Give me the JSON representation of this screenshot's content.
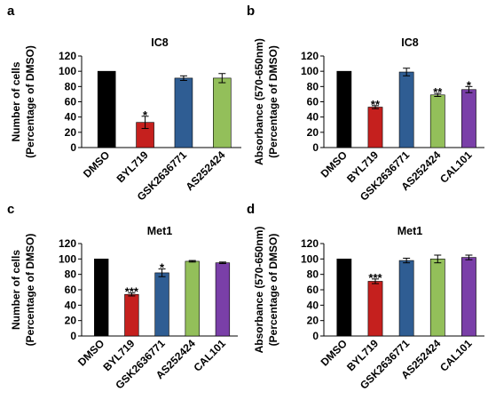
{
  "chart_data": [
    {
      "panel": "a",
      "type": "bar",
      "title": "IC8",
      "ylabel_lines": [
        "Number of cells",
        "(Percentage of DMSO)"
      ],
      "ylim": [
        0,
        120
      ],
      "yticks": [
        "0",
        "20",
        "40",
        "60",
        "80",
        "100",
        "120"
      ],
      "categories": [
        "DMSO",
        "BYL719",
        "GSK2636771",
        "AS252424"
      ],
      "values": [
        100,
        33,
        91,
        91
      ],
      "errors": [
        0,
        8,
        3,
        6
      ],
      "significance": [
        "",
        "*",
        "",
        ""
      ],
      "colors": [
        "#000000",
        "#c5201e",
        "#2f5d93",
        "#93bf5a"
      ],
      "grid": false,
      "legend": "none"
    },
    {
      "panel": "b",
      "type": "bar",
      "title": "IC8",
      "ylabel_lines": [
        "Absorbance (570-650nm)",
        "(Percentage of DMSO)"
      ],
      "ylim": [
        0,
        120
      ],
      "yticks": [
        "0",
        "20",
        "40",
        "60",
        "80",
        "100",
        "120"
      ],
      "categories": [
        "DMSO",
        "BYL719",
        "GSK2636771",
        "AS252424",
        "CAL101"
      ],
      "values": [
        100,
        53,
        99,
        69,
        76
      ],
      "errors": [
        0,
        2,
        5,
        2,
        4
      ],
      "significance": [
        "",
        "**",
        "",
        "**",
        "*"
      ],
      "colors": [
        "#000000",
        "#c5201e",
        "#2f5d93",
        "#93bf5a",
        "#7a3fa8"
      ],
      "grid": false,
      "legend": "none"
    },
    {
      "panel": "c",
      "type": "bar",
      "title": "Met1",
      "ylabel_lines": [
        "Number of cells",
        "(Percentage of DMSO)"
      ],
      "ylim": [
        0,
        120
      ],
      "yticks": [
        "0",
        "20",
        "40",
        "60",
        "80",
        "100",
        "120"
      ],
      "categories": [
        "DMSO",
        "BYL719",
        "GSK2636771",
        "AS252424",
        "CAL101"
      ],
      "values": [
        100,
        54,
        82,
        97,
        95
      ],
      "errors": [
        0,
        2,
        5,
        1,
        1
      ],
      "significance": [
        "",
        "***",
        "*",
        "",
        ""
      ],
      "colors": [
        "#000000",
        "#c5201e",
        "#2f5d93",
        "#93bf5a",
        "#7a3fa8"
      ],
      "grid": false,
      "legend": "none"
    },
    {
      "panel": "d",
      "type": "bar",
      "title": "Met1",
      "ylabel_lines": [
        "Absorbance (570-650nm)",
        "(Percentage of DMSO)"
      ],
      "ylim": [
        0,
        120
      ],
      "yticks": [
        "0",
        "20",
        "40",
        "60",
        "80",
        "100",
        "120"
      ],
      "categories": [
        "DMSO",
        "BYL719",
        "GSK2636771",
        "AS252424",
        "CAL101"
      ],
      "values": [
        100,
        71,
        98,
        100,
        102
      ],
      "errors": [
        0,
        3,
        3,
        5,
        3
      ],
      "significance": [
        "",
        "***",
        "",
        "",
        ""
      ],
      "colors": [
        "#000000",
        "#c5201e",
        "#2f5d93",
        "#93bf5a",
        "#7a3fa8"
      ],
      "grid": false,
      "legend": "none"
    }
  ]
}
